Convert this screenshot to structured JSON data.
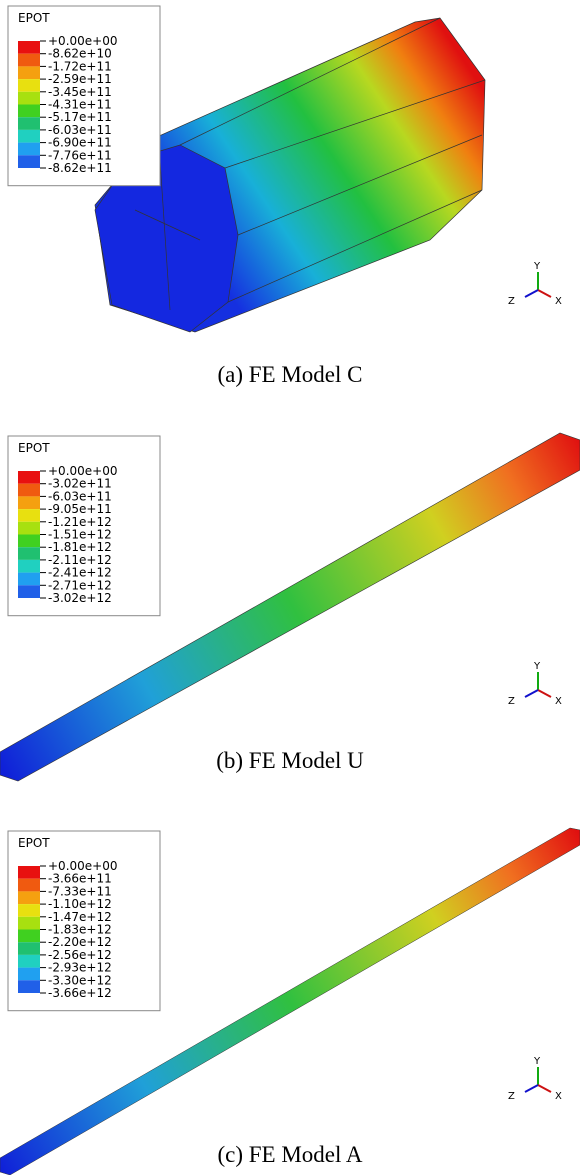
{
  "panels": [
    {
      "legend": {
        "title": "EPOT",
        "labels": [
          "+0.00e+00",
          "-8.62e+10",
          "-1.72e+11",
          "-2.59e+11",
          "-3.45e+11",
          "-4.31e+11",
          "-5.17e+11",
          "-6.03e+11",
          "-6.90e+11",
          "-7.76e+11",
          "-8.62e+11"
        ]
      },
      "triad": {
        "y": "Y",
        "z": "Z",
        "x": "X"
      },
      "caption": "(a) FE Model C"
    },
    {
      "legend": {
        "title": "EPOT",
        "labels": [
          "+0.00e+00",
          "-3.02e+11",
          "-6.03e+11",
          "-9.05e+11",
          "-1.21e+12",
          "-1.51e+12",
          "-1.81e+12",
          "-2.11e+12",
          "-2.41e+12",
          "-2.71e+12",
          "-3.02e+12"
        ]
      },
      "triad": {
        "y": "Y",
        "z": "Z",
        "x": "X"
      },
      "caption": "(b) FE Model U"
    },
    {
      "legend": {
        "title": "EPOT",
        "labels": [
          "+0.00e+00",
          "-3.66e+11",
          "-7.33e+11",
          "-1.10e+12",
          "-1.47e+12",
          "-1.83e+12",
          "-2.20e+12",
          "-2.56e+12",
          "-2.93e+12",
          "-3.30e+12",
          "-3.66e+12"
        ]
      },
      "triad": {
        "y": "Y",
        "z": "Z",
        "x": "X"
      },
      "caption": "(c) FE Model A"
    }
  ]
}
